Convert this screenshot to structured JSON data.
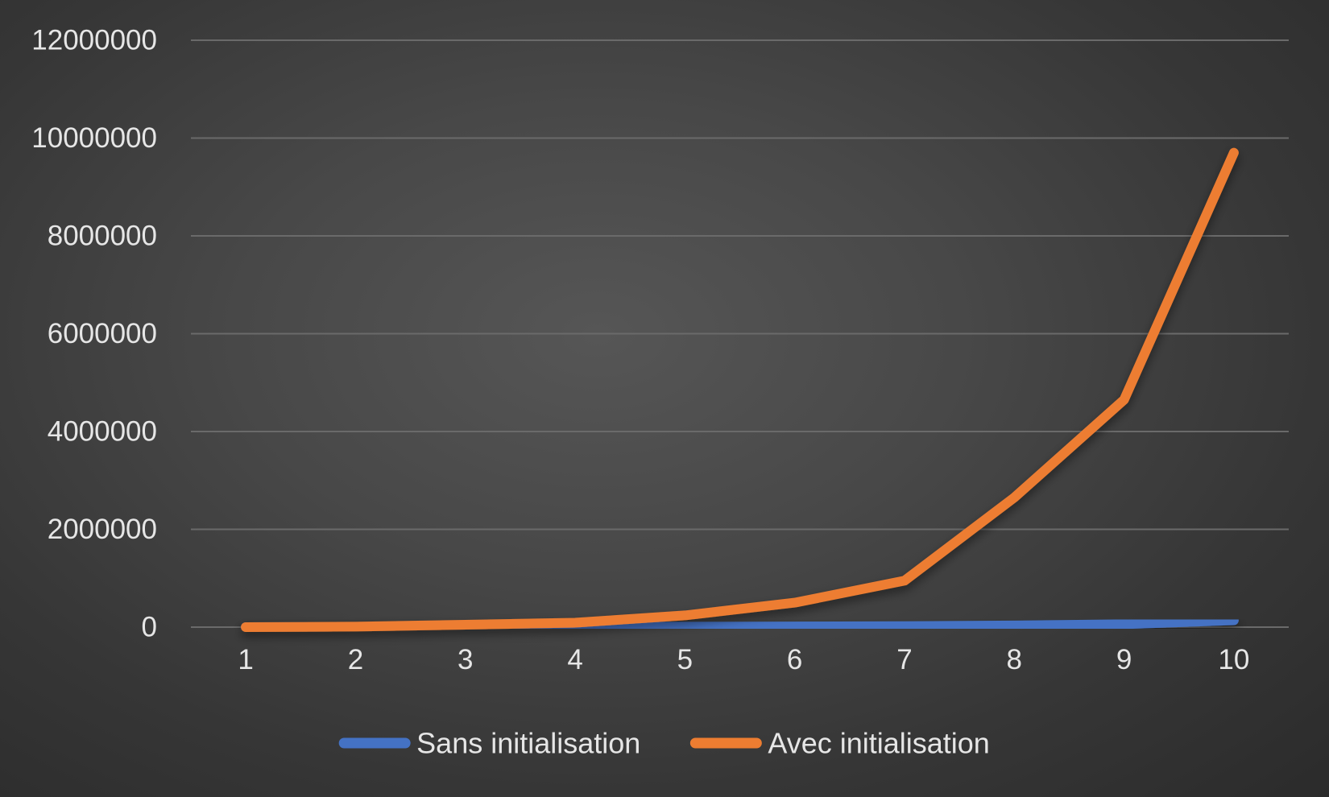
{
  "chart_data": {
    "type": "line",
    "title": "",
    "xlabel": "",
    "ylabel": "",
    "categories": [
      "1",
      "2",
      "3",
      "4",
      "5",
      "6",
      "7",
      "8",
      "9",
      "10"
    ],
    "ylim": [
      0,
      12000000
    ],
    "yticks": [
      "0",
      "2000000",
      "4000000",
      "6000000",
      "8000000",
      "10000000",
      "12000000"
    ],
    "grid": true,
    "legend": "bottom",
    "series": [
      {
        "name": "Sans initialisation",
        "color": "#4472C4",
        "values": [
          0,
          1000,
          3000,
          6000,
          10000,
          15000,
          22000,
          35000,
          60000,
          140000
        ]
      },
      {
        "name": "Avec initialisation",
        "color": "#ED7D31",
        "values": [
          0,
          10000,
          50000,
          90000,
          240000,
          500000,
          950000,
          2650000,
          4650000,
          9700000
        ]
      }
    ]
  }
}
